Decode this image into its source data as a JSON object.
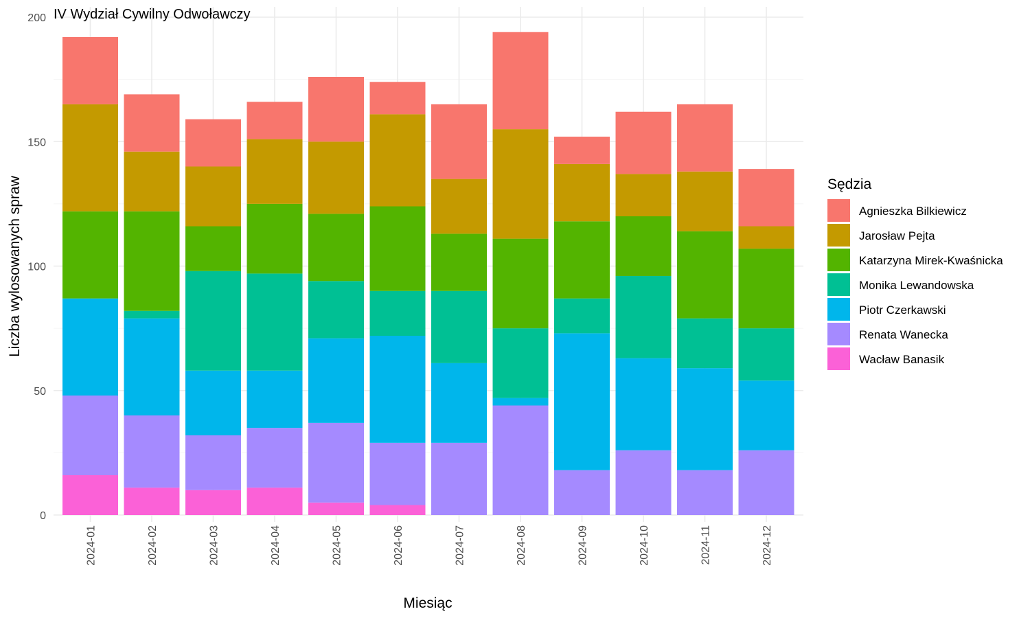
{
  "chart_data": {
    "type": "bar",
    "stacked": true,
    "title": "IV Wydział Cywilny Odwoławczy",
    "xlabel": "Miesiąc",
    "ylabel": "Liczba wylosowanych spraw",
    "ylim": [
      0,
      200
    ],
    "yticks": [
      0,
      50,
      100,
      150,
      200
    ],
    "grid": true,
    "legend": {
      "title": "Sędzia",
      "position": "right"
    },
    "categories": [
      "2024-01",
      "2024-02",
      "2024-03",
      "2024-04",
      "2024-05",
      "2024-06",
      "2024-07",
      "2024-08",
      "2024-09",
      "2024-10",
      "2024-11",
      "2024-12"
    ],
    "series": [
      {
        "name": "Agnieszka Bilkiewicz",
        "color": "#F8766D",
        "values": [
          27,
          23,
          19,
          15,
          26,
          13,
          30,
          39,
          11,
          25,
          27,
          23
        ]
      },
      {
        "name": "Jarosław Pejta",
        "color": "#C49A00",
        "values": [
          43,
          24,
          24,
          26,
          29,
          37,
          22,
          44,
          23,
          17,
          24,
          9
        ]
      },
      {
        "name": "Katarzyna Mirek-Kwaśnicka",
        "color": "#53B400",
        "values": [
          35,
          40,
          18,
          28,
          27,
          34,
          23,
          36,
          31,
          24,
          35,
          32
        ]
      },
      {
        "name": "Monika Lewandowska",
        "color": "#00C094",
        "values": [
          0,
          3,
          40,
          39,
          23,
          18,
          29,
          28,
          14,
          33,
          20,
          21
        ]
      },
      {
        "name": "Piotr Czerkawski",
        "color": "#00B6EB",
        "values": [
          39,
          39,
          26,
          23,
          34,
          43,
          32,
          3,
          55,
          37,
          41,
          28
        ]
      },
      {
        "name": "Renata Wanecka",
        "color": "#A58AFF",
        "values": [
          32,
          29,
          22,
          24,
          32,
          25,
          29,
          44,
          18,
          26,
          18,
          26
        ]
      },
      {
        "name": "Wacław Banasik",
        "color": "#FB61D7",
        "values": [
          16,
          11,
          10,
          11,
          5,
          4,
          0,
          0,
          0,
          0,
          0,
          0
        ]
      }
    ]
  }
}
